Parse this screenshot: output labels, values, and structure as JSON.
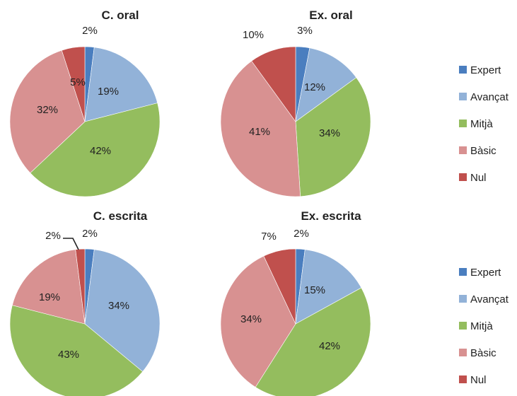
{
  "legend": {
    "categories": [
      "Expert",
      "Avançat",
      "Mitjà",
      "Bàsic",
      "Nul"
    ]
  },
  "colors": [
    "#4a7ebf",
    "#92b2d8",
    "#94bd5e",
    "#d89191",
    "#c0504d"
  ],
  "chart_data": [
    {
      "type": "pie",
      "title": "C. oral",
      "categories": [
        "Expert",
        "Avançat",
        "Mitjà",
        "Bàsic",
        "Nul"
      ],
      "values": [
        2,
        19,
        42,
        32,
        5
      ],
      "labels": [
        "2%",
        "19%",
        "42%",
        "32%",
        "5%"
      ]
    },
    {
      "type": "pie",
      "title": "Ex. oral",
      "categories": [
        "Expert",
        "Avançat",
        "Mitjà",
        "Bàsic",
        "Nul"
      ],
      "values": [
        3,
        12,
        34,
        41,
        10
      ],
      "labels": [
        "3%",
        "12%",
        "34%",
        "41%",
        "10%"
      ]
    },
    {
      "type": "pie",
      "title": "C. escrita",
      "categories": [
        "Expert",
        "Avançat",
        "Mitjà",
        "Bàsic",
        "Nul"
      ],
      "values": [
        2,
        34,
        43,
        19,
        2
      ],
      "labels": [
        "2%",
        "34%",
        "43%",
        "19%",
        "2%"
      ]
    },
    {
      "type": "pie",
      "title": "Ex. escrita",
      "categories": [
        "Expert",
        "Avançat",
        "Mitjà",
        "Bàsic",
        "Nul"
      ],
      "values": [
        2,
        15,
        42,
        34,
        7
      ],
      "labels": [
        "2%",
        "15%",
        "42%",
        "34%",
        "7%"
      ]
    }
  ]
}
